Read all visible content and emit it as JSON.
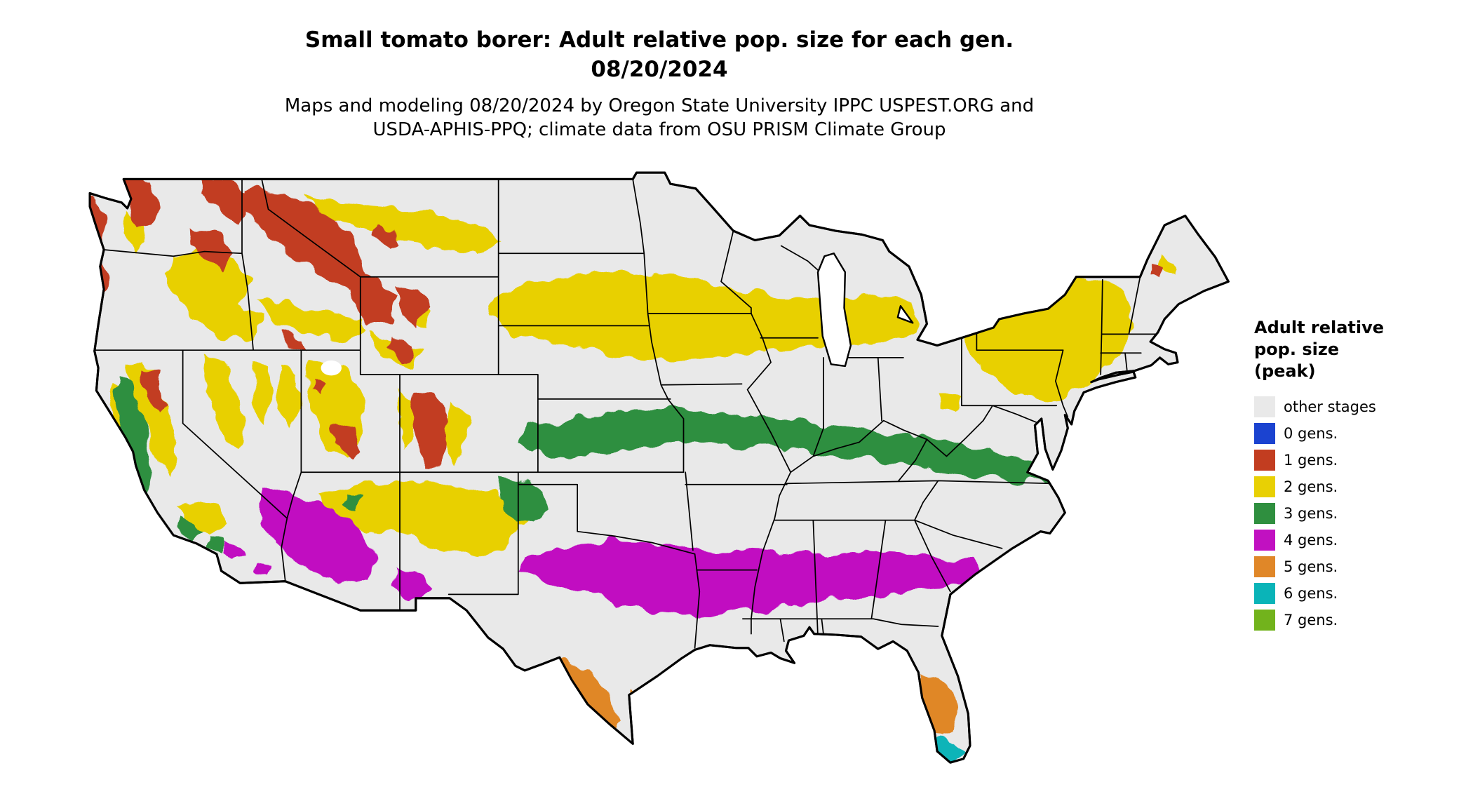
{
  "title": {
    "line1": "Small tomato borer: Adult relative pop. size for each gen.",
    "line2": "08/20/2024"
  },
  "subtitle": {
    "line1": "Maps and modeling 08/20/2024 by Oregon State University IPPC USPEST.ORG and",
    "line2": "USDA-APHIS-PPQ; climate data from OSU PRISM Climate Group"
  },
  "legend": {
    "title_lines": [
      "Adult relative",
      "pop. size",
      "(peak)"
    ],
    "items": [
      {
        "label": "other stages",
        "color": "#e9e9e9"
      },
      {
        "label": "0 gens.",
        "color": "#1b43d0"
      },
      {
        "label": "1 gens.",
        "color": "#c23d20"
      },
      {
        "label": "2 gens.",
        "color": "#e8d004"
      },
      {
        "label": "3 gens.",
        "color": "#2f8f3f"
      },
      {
        "label": "4 gens.",
        "color": "#c111c1"
      },
      {
        "label": "5 gens.",
        "color": "#e08728"
      },
      {
        "label": "6 gens.",
        "color": "#0ab4b8"
      },
      {
        "label": "7 gens.",
        "color": "#72b31c"
      }
    ]
  },
  "map": {
    "name": "conterminous-us-map",
    "region": "Conterminous United States",
    "background_color": "#ffffff",
    "outline_color": "#000000"
  }
}
